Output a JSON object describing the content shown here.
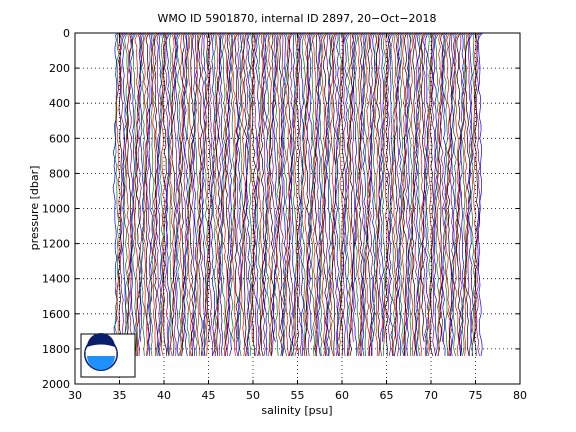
{
  "chart_data": {
    "type": "line",
    "title": "WMO ID 5901870, internal ID 2897, 20−Oct−2018",
    "xlabel": "salinity [psu]",
    "ylabel": "pressure [dbar]",
    "xlim": [
      30,
      80
    ],
    "ylim": [
      0,
      2000
    ],
    "y_reversed": true,
    "grid": true,
    "x_ticks": [
      "30",
      "35",
      "40",
      "45",
      "50",
      "55",
      "60",
      "65",
      "70",
      "75",
      "80"
    ],
    "y_ticks": [
      "0",
      "200",
      "400",
      "600",
      "800",
      "1000",
      "1200",
      "1400",
      "1600",
      "1800",
      "2000"
    ],
    "profile_layout": {
      "first_profile_salinity": 34.5,
      "last_profile_salinity": 75.5,
      "offset_step": 0.2,
      "max_pressure": 1840,
      "colors": [
        "#0000ff",
        "#008000",
        "#ff0000",
        "#000000",
        "#800080"
      ]
    },
    "logo": "NOAA"
  }
}
